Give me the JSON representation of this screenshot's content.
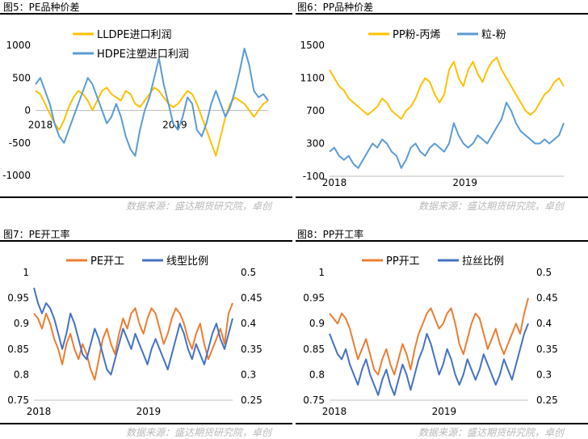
{
  "source_text": "数据来源：盛达期货研究院，卓创",
  "chart_data": [
    {
      "id": "fig5",
      "type": "line",
      "title": "图5：PE品种价差",
      "ylim": [
        -1000,
        1000
      ],
      "yticks": [
        -1000,
        -500,
        0,
        500,
        1000
      ],
      "xlabels": [
        {
          "label": "2018",
          "t": 0.0
        },
        {
          "label": "2019",
          "t": 0.55
        }
      ],
      "series": [
        {
          "name": "LLDPE进口利润",
          "color": "#FFC000",
          "values": [
            300,
            250,
            100,
            -50,
            -200,
            -300,
            -150,
            50,
            200,
            300,
            250,
            150,
            0,
            150,
            300,
            350,
            250,
            200,
            150,
            300,
            250,
            100,
            50,
            150,
            250,
            350,
            300,
            200,
            100,
            50,
            100,
            200,
            300,
            250,
            100,
            -100,
            -300,
            -500,
            -700,
            -400,
            -100,
            100,
            200,
            150,
            100,
            0,
            -100,
            0,
            100,
            150
          ]
        },
        {
          "name": "HDPE注塑进口利润",
          "color": "#5B9BD5",
          "values": [
            400,
            500,
            300,
            100,
            -200,
            -400,
            -500,
            -300,
            -100,
            100,
            300,
            500,
            400,
            200,
            0,
            -200,
            -100,
            100,
            -100,
            -400,
            -600,
            -700,
            -300,
            0,
            200,
            500,
            800,
            400,
            100,
            -200,
            -300,
            -100,
            200,
            100,
            -300,
            -400,
            -200,
            100,
            300,
            100,
            -100,
            50,
            300,
            600,
            950,
            700,
            300,
            200,
            250,
            150
          ]
        }
      ]
    },
    {
      "id": "fig6",
      "type": "line",
      "title": "图6：PP品种价差",
      "ylim": [
        -100,
        1500
      ],
      "yticks": [
        -100,
        300,
        700,
        1100,
        1500
      ],
      "xlabels": [
        {
          "label": "2018",
          "t": 0.0
        },
        {
          "label": "2019",
          "t": 0.53
        }
      ],
      "series": [
        {
          "name": "PP粉-丙烯",
          "color": "#FFC000",
          "values": [
            1200,
            1100,
            1000,
            950,
            850,
            800,
            750,
            700,
            650,
            700,
            750,
            850,
            800,
            700,
            650,
            600,
            700,
            750,
            850,
            1000,
            1100,
            1050,
            900,
            800,
            900,
            1200,
            1300,
            1100,
            1000,
            1200,
            1300,
            1150,
            1050,
            1200,
            1300,
            1350,
            1200,
            1100,
            1000,
            900,
            800,
            700,
            650,
            700,
            800,
            900,
            950,
            1050,
            1100,
            1000
          ]
        },
        {
          "name": "粒-粉",
          "color": "#5B9BD5",
          "values": [
            200,
            250,
            150,
            100,
            150,
            50,
            0,
            100,
            200,
            300,
            250,
            350,
            300,
            200,
            150,
            0,
            100,
            250,
            300,
            200,
            150,
            250,
            300,
            250,
            200,
            300,
            550,
            400,
            300,
            250,
            300,
            400,
            350,
            300,
            400,
            500,
            600,
            800,
            700,
            550,
            450,
            400,
            350,
            300,
            300,
            350,
            300,
            350,
            400,
            550
          ]
        }
      ]
    },
    {
      "id": "fig7",
      "type": "line",
      "title": "图7：PE开工率",
      "ylim": [
        0.75,
        1
      ],
      "yticks": [
        0.75,
        0.8,
        0.85,
        0.9,
        0.95,
        1
      ],
      "y2lim": [
        0.25,
        0.5
      ],
      "y2ticks": [
        0.25,
        0.3,
        0.35,
        0.4,
        0.45,
        0.5
      ],
      "xlabels": [
        {
          "label": "2018",
          "t": 0.0
        },
        {
          "label": "2019",
          "t": 0.52
        }
      ],
      "series": [
        {
          "name": "PE开工",
          "color": "#ED7D31",
          "axis": "left",
          "values": [
            0.92,
            0.91,
            0.89,
            0.92,
            0.9,
            0.87,
            0.85,
            0.82,
            0.86,
            0.88,
            0.85,
            0.83,
            0.86,
            0.84,
            0.81,
            0.79,
            0.83,
            0.87,
            0.89,
            0.86,
            0.84,
            0.88,
            0.91,
            0.89,
            0.92,
            0.93,
            0.9,
            0.88,
            0.91,
            0.93,
            0.92,
            0.89,
            0.86,
            0.88,
            0.91,
            0.93,
            0.92,
            0.9,
            0.87,
            0.85,
            0.88,
            0.9,
            0.86,
            0.83,
            0.85,
            0.87,
            0.89,
            0.86,
            0.92,
            0.94
          ]
        },
        {
          "name": "线型比例",
          "color": "#4472C4",
          "axis": "right",
          "values": [
            0.47,
            0.44,
            0.42,
            0.44,
            0.43,
            0.41,
            0.38,
            0.35,
            0.38,
            0.42,
            0.4,
            0.37,
            0.34,
            0.33,
            0.36,
            0.39,
            0.37,
            0.34,
            0.31,
            0.3,
            0.33,
            0.36,
            0.39,
            0.37,
            0.35,
            0.38,
            0.36,
            0.34,
            0.32,
            0.35,
            0.37,
            0.35,
            0.33,
            0.31,
            0.34,
            0.37,
            0.4,
            0.38,
            0.35,
            0.33,
            0.36,
            0.34,
            0.32,
            0.35,
            0.38,
            0.4,
            0.37,
            0.35,
            0.38,
            0.41
          ]
        }
      ]
    },
    {
      "id": "fig8",
      "type": "line",
      "title": "图8：PP开工率",
      "ylim": [
        0.75,
        1
      ],
      "yticks": [
        0.75,
        0.8,
        0.85,
        0.9,
        0.95,
        1
      ],
      "y2lim": [
        0.25,
        0.5
      ],
      "y2ticks": [
        0.25,
        0.3,
        0.35,
        0.4,
        0.45,
        0.5
      ],
      "xlabels": [
        {
          "label": "2018",
          "t": 0.0
        },
        {
          "label": "2019",
          "t": 0.52
        }
      ],
      "series": [
        {
          "name": "PP开工",
          "color": "#ED7D31",
          "axis": "left",
          "values": [
            0.92,
            0.91,
            0.9,
            0.92,
            0.91,
            0.89,
            0.86,
            0.83,
            0.85,
            0.87,
            0.84,
            0.81,
            0.8,
            0.83,
            0.85,
            0.82,
            0.8,
            0.83,
            0.86,
            0.84,
            0.81,
            0.85,
            0.88,
            0.9,
            0.92,
            0.93,
            0.91,
            0.89,
            0.9,
            0.92,
            0.93,
            0.9,
            0.86,
            0.84,
            0.87,
            0.9,
            0.92,
            0.91,
            0.88,
            0.85,
            0.87,
            0.89,
            0.86,
            0.84,
            0.86,
            0.88,
            0.9,
            0.88,
            0.92,
            0.95
          ]
        },
        {
          "name": "拉丝比例",
          "color": "#4472C4",
          "axis": "right",
          "values": [
            0.38,
            0.36,
            0.34,
            0.33,
            0.35,
            0.32,
            0.3,
            0.28,
            0.31,
            0.33,
            0.3,
            0.28,
            0.26,
            0.29,
            0.31,
            0.28,
            0.26,
            0.29,
            0.32,
            0.3,
            0.27,
            0.3,
            0.33,
            0.35,
            0.38,
            0.36,
            0.33,
            0.3,
            0.32,
            0.35,
            0.33,
            0.3,
            0.28,
            0.3,
            0.33,
            0.31,
            0.29,
            0.31,
            0.34,
            0.32,
            0.3,
            0.28,
            0.3,
            0.33,
            0.31,
            0.29,
            0.32,
            0.35,
            0.38,
            0.4
          ]
        }
      ]
    }
  ]
}
